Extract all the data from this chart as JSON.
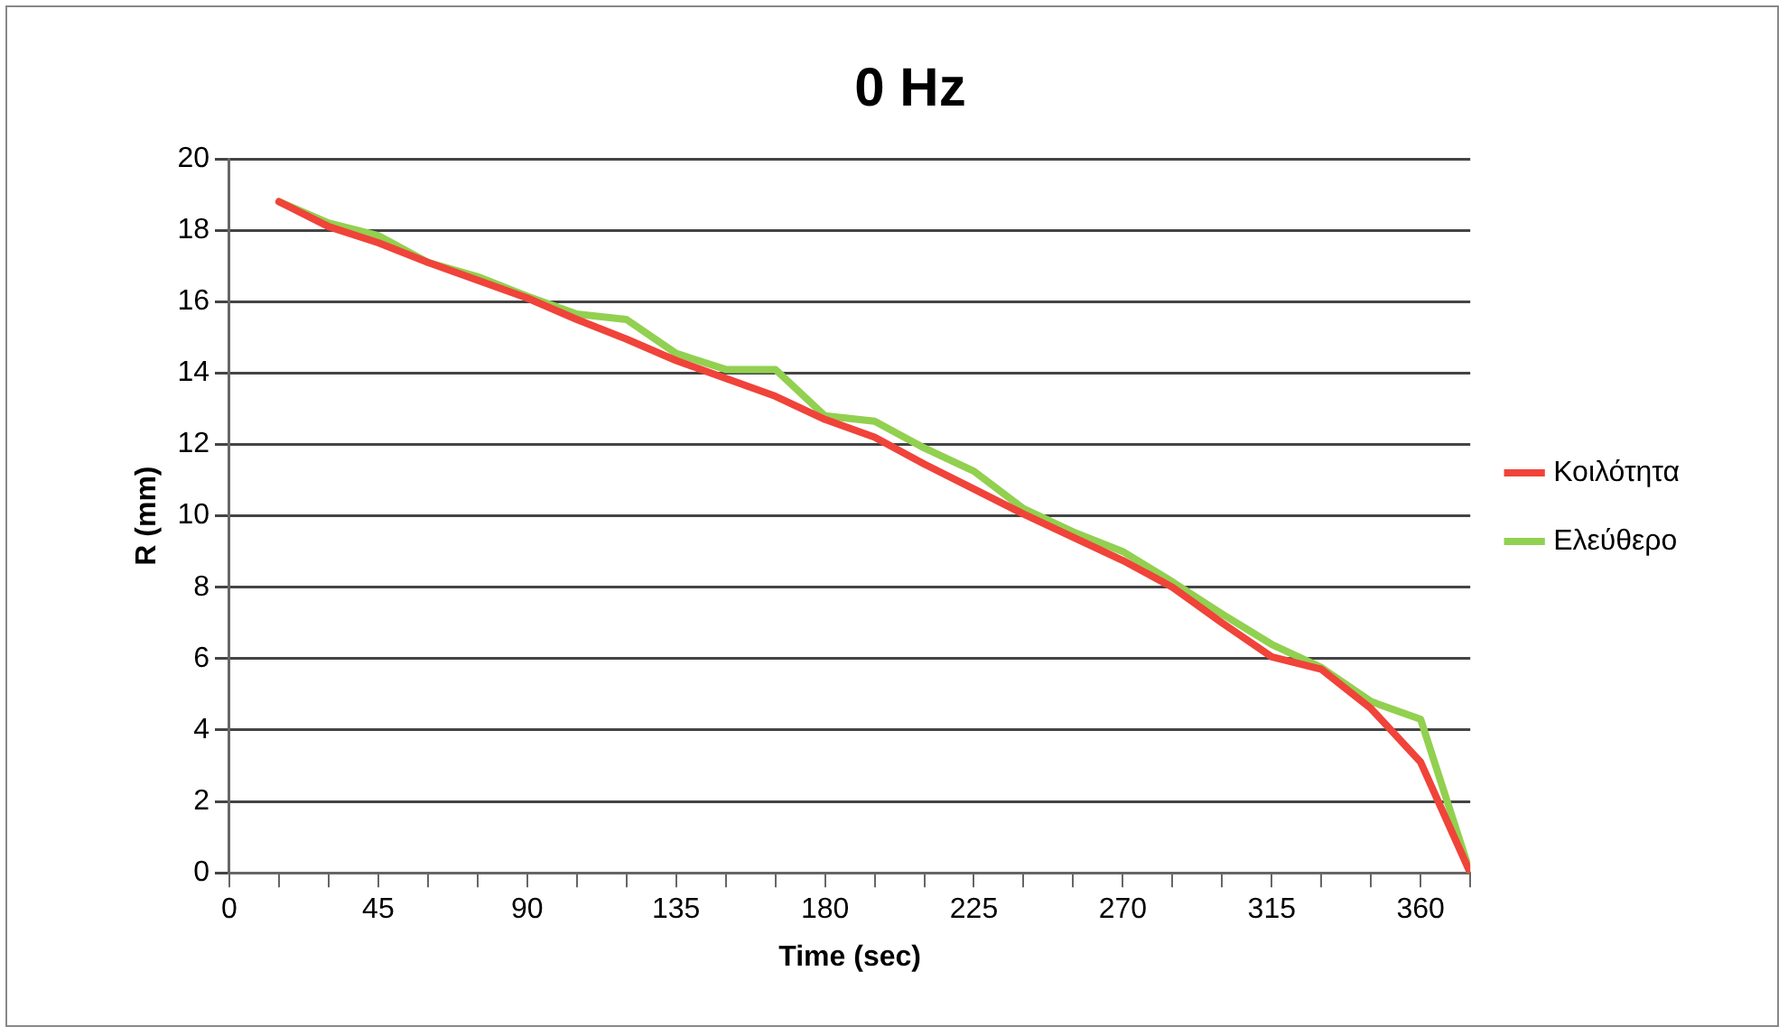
{
  "chart_data": {
    "type": "line",
    "title": "0 Hz",
    "xlabel": "Time (sec)",
    "ylabel": "R (mm)",
    "x": [
      15,
      30,
      45,
      60,
      75,
      90,
      105,
      120,
      135,
      150,
      165,
      180,
      195,
      210,
      225,
      240,
      255,
      270,
      285,
      300,
      315,
      330,
      345,
      360,
      375
    ],
    "series": [
      {
        "name": "Κοιλότητα",
        "color": "#f0433a",
        "values": [
          18.8,
          18.1,
          17.65,
          17.1,
          16.6,
          16.1,
          15.5,
          14.95,
          14.35,
          13.85,
          13.35,
          12.7,
          12.2,
          11.45,
          10.75,
          10.05,
          9.4,
          8.75,
          8,
          7,
          6.05,
          5.7,
          4.6,
          3.1,
          0
        ]
      },
      {
        "name": "Ελεύθερο",
        "color": "#92d050",
        "values": [
          18.8,
          18.2,
          17.85,
          17.1,
          16.7,
          16.15,
          15.65,
          15.5,
          14.55,
          14.1,
          14.1,
          12.8,
          12.65,
          11.9,
          11.25,
          10.2,
          9.55,
          9,
          8.15,
          7.25,
          6.4,
          5.75,
          4.8,
          4.3,
          0
        ]
      }
    ],
    "xlim": [
      0,
      375
    ],
    "xticks": [
      0,
      {
        "value": 15,
        "label": null
      },
      {
        "value": 30,
        "label": null
      },
      45,
      {
        "value": 60,
        "label": null
      },
      {
        "value": 75,
        "label": null
      },
      90,
      {
        "value": 105,
        "label": null
      },
      {
        "value": 120,
        "label": null
      },
      135,
      {
        "value": 150,
        "label": null
      },
      {
        "value": 165,
        "label": null
      },
      180,
      {
        "value": 195,
        "label": null
      },
      {
        "value": 210,
        "label": null
      },
      225,
      {
        "value": 240,
        "label": null
      },
      {
        "value": 255,
        "label": null
      },
      270,
      {
        "value": 285,
        "label": null
      },
      {
        "value": 300,
        "label": null
      },
      315,
      {
        "value": 330,
        "label": null
      },
      {
        "value": 345,
        "label": null
      },
      360,
      {
        "value": 375,
        "label": null
      }
    ],
    "ylim": [
      0,
      20
    ],
    "yticks": [
      0,
      2,
      4,
      6,
      8,
      10,
      12,
      14,
      16,
      18,
      20
    ],
    "grid": "y",
    "legend": "right",
    "marker": "none",
    "line_style": "solid"
  }
}
